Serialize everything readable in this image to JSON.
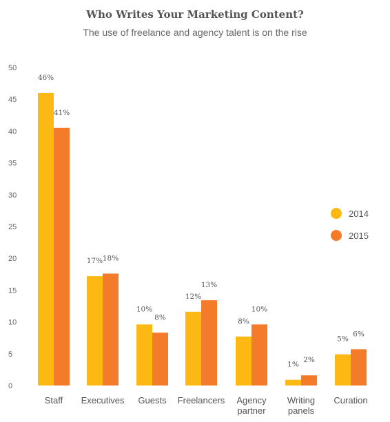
{
  "chart_data": {
    "type": "bar",
    "title": "Who Writes Your Marketing Content?",
    "subtitle": "The use of freelance and agency talent is on the rise",
    "xlabel": "",
    "ylabel": "",
    "ylim": [
      0,
      50
    ],
    "yticks": [
      0,
      5,
      10,
      15,
      20,
      25,
      30,
      35,
      40,
      45,
      50
    ],
    "categories": [
      [
        "Staff"
      ],
      [
        "Executives"
      ],
      [
        "Guests"
      ],
      [
        "Freelancers"
      ],
      [
        "Agency",
        "partner"
      ],
      [
        "Writing",
        "panels"
      ],
      [
        "Curation"
      ]
    ],
    "series": [
      {
        "name": "2014",
        "color": "#FDB913",
        "values": [
          46,
          17.2,
          9.6,
          11.6,
          7.7,
          0.9,
          4.9
        ],
        "labels": [
          "46%",
          "17%",
          "10%",
          "12%",
          "8%",
          "1%",
          "5%"
        ]
      },
      {
        "name": "2015",
        "color": "#F47B29",
        "values": [
          40.5,
          17.6,
          8.3,
          13.4,
          9.6,
          1.6,
          5.7
        ],
        "labels": [
          "41%",
          "18%",
          "8%",
          "13%",
          "10%",
          "2%",
          "6%"
        ]
      }
    ],
    "grid": false,
    "legend_position": "right"
  }
}
